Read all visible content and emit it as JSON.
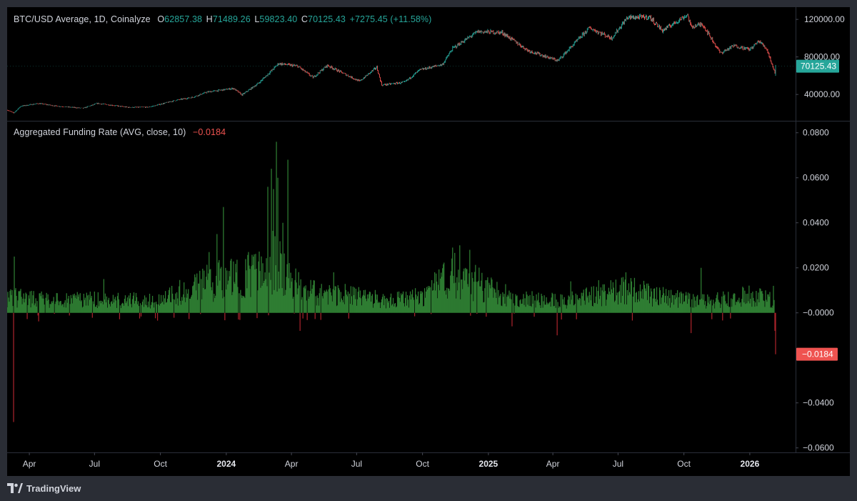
{
  "price_legend": {
    "symbol": "BTC/USD Average, 1D, Coinalyze",
    "open_label": "O",
    "open": "62857.38",
    "high_label": "H",
    "high": "71489.26",
    "low_label": "L",
    "low": "59823.40",
    "close_label": "C",
    "close": "70125.43",
    "change": "+7275.45 (+11.58%)"
  },
  "funding_legend": {
    "title": "Aggregated Funding Rate (AVG, close, 10)",
    "value": "−0.0184"
  },
  "branding": {
    "name": "TradingView"
  },
  "colors": {
    "up": "#26a69a",
    "down": "#ef5350",
    "bar_up": "#2e7d32",
    "bar_down": "#a8232b",
    "background": "#000000",
    "frame": "#2a2d35"
  },
  "chart_data": [
    {
      "type": "candlestick",
      "title": "BTC/USD Average, 1D, Coinalyze",
      "x_start": "2023-03-01",
      "x_end": "2026-02-06",
      "anchors": [
        [
          "2023-03-01",
          23500
        ],
        [
          "2023-03-10",
          20200
        ],
        [
          "2023-03-20",
          27500
        ],
        [
          "2023-04-14",
          30400
        ],
        [
          "2023-05-10",
          27500
        ],
        [
          "2023-06-15",
          25300
        ],
        [
          "2023-07-05",
          30500
        ],
        [
          "2023-08-18",
          26200
        ],
        [
          "2023-09-15",
          26500
        ],
        [
          "2023-10-24",
          34000
        ],
        [
          "2023-11-15",
          37000
        ],
        [
          "2023-12-05",
          42500
        ],
        [
          "2024-01-11",
          46500
        ],
        [
          "2024-01-23",
          39500
        ],
        [
          "2024-02-15",
          52000
        ],
        [
          "2024-03-05",
          66000
        ],
        [
          "2024-03-14",
          73000
        ],
        [
          "2024-04-10",
          70000
        ],
        [
          "2024-05-01",
          58000
        ],
        [
          "2024-05-21",
          71000
        ],
        [
          "2024-07-05",
          54000
        ],
        [
          "2024-07-29",
          69000
        ],
        [
          "2024-08-05",
          50000
        ],
        [
          "2024-09-06",
          53000
        ],
        [
          "2024-09-27",
          66000
        ],
        [
          "2024-10-29",
          72000
        ],
        [
          "2024-11-12",
          89000
        ],
        [
          "2024-12-17",
          107000
        ],
        [
          "2025-01-20",
          106000
        ],
        [
          "2025-02-25",
          87000
        ],
        [
          "2025-04-08",
          76000
        ],
        [
          "2025-05-22",
          111000
        ],
        [
          "2025-06-22",
          100000
        ],
        [
          "2025-07-14",
          122000
        ],
        [
          "2025-08-14",
          122500
        ],
        [
          "2025-09-01",
          108000
        ],
        [
          "2025-10-06",
          125000
        ],
        [
          "2025-10-11",
          112000
        ],
        [
          "2025-10-27",
          115000
        ],
        [
          "2025-11-21",
          84000
        ],
        [
          "2025-12-10",
          92000
        ],
        [
          "2026-01-01",
          88000
        ],
        [
          "2026-01-14",
          97000
        ],
        [
          "2026-01-25",
          88000
        ],
        [
          "2026-02-05",
          63000
        ],
        [
          "2026-02-06",
          70125.43
        ]
      ],
      "last_value": "70125.43",
      "ylim": [
        15000,
        130000
      ],
      "yticks": [
        "40000.00",
        "80000.00",
        "120000.00"
      ],
      "ytick_values": [
        40000,
        80000,
        120000
      ]
    },
    {
      "type": "bar",
      "title": "Aggregated Funding Rate (AVG, close, 10)",
      "x_start": "2023-03-01",
      "x_end": "2026-02-06",
      "baseline_anchors": [
        [
          "2023-03-01",
          0.007
        ],
        [
          "2023-05-01",
          0.0055
        ],
        [
          "2023-08-01",
          0.006
        ],
        [
          "2023-10-01",
          0.005
        ],
        [
          "2023-11-01",
          0.0095
        ],
        [
          "2023-12-15",
          0.014
        ],
        [
          "2024-02-15",
          0.018
        ],
        [
          "2024-03-10",
          0.023
        ],
        [
          "2024-04-20",
          0.009
        ],
        [
          "2024-06-01",
          0.0085
        ],
        [
          "2024-08-15",
          0.0055
        ],
        [
          "2024-10-01",
          0.007
        ],
        [
          "2024-11-15",
          0.018
        ],
        [
          "2024-12-20",
          0.012
        ],
        [
          "2025-02-01",
          0.007
        ],
        [
          "2025-04-15",
          0.005
        ],
        [
          "2025-06-01",
          0.008
        ],
        [
          "2025-07-15",
          0.01
        ],
        [
          "2025-09-01",
          0.007
        ],
        [
          "2025-11-01",
          0.005
        ],
        [
          "2026-01-15",
          0.008
        ],
        [
          "2026-02-06",
          0.005
        ]
      ],
      "spikes": [
        [
          "2023-03-10",
          -0.0485
        ],
        [
          "2023-03-11",
          0.025
        ],
        [
          "2023-07-14",
          0.015
        ],
        [
          "2023-12-08",
          0.027
        ],
        [
          "2023-12-19",
          0.035
        ],
        [
          "2023-12-28",
          0.047
        ],
        [
          "2024-01-08",
          0.024
        ],
        [
          "2024-02-28",
          0.056
        ],
        [
          "2024-03-04",
          0.064
        ],
        [
          "2024-03-07",
          0.055
        ],
        [
          "2024-03-11",
          0.076
        ],
        [
          "2024-03-13",
          0.06
        ],
        [
          "2024-03-20",
          0.04
        ],
        [
          "2024-03-27",
          0.068
        ],
        [
          "2024-04-13",
          -0.008
        ],
        [
          "2024-05-30",
          0.018
        ],
        [
          "2024-11-12",
          0.029
        ],
        [
          "2024-11-22",
          0.03
        ],
        [
          "2024-12-06",
          0.028
        ],
        [
          "2025-02-03",
          -0.006
        ],
        [
          "2025-04-07",
          -0.01
        ],
        [
          "2025-04-26",
          0.014
        ],
        [
          "2025-06-04",
          0.0145
        ],
        [
          "2025-07-12",
          0.018
        ],
        [
          "2025-10-11",
          -0.009
        ],
        [
          "2025-10-25",
          0.02
        ],
        [
          "2026-02-03",
          0.012
        ],
        [
          "2026-02-05",
          -0.008
        ],
        [
          "2026-02-06",
          -0.0184
        ]
      ],
      "last_value": "−0.0184",
      "ylim": [
        -0.062,
        0.085
      ],
      "yticks": [
        "0.0800",
        "0.0600",
        "0.0400",
        "0.0200",
        "−0.0000",
        "−0.0400",
        "−0.0600"
      ],
      "ytick_values": [
        0.08,
        0.06,
        0.04,
        0.02,
        0.0,
        -0.04,
        -0.06
      ]
    }
  ],
  "x_axis": {
    "ticks": [
      {
        "label": "Apr",
        "date": "2023-04-01",
        "bold": false
      },
      {
        "label": "Jul",
        "date": "2023-07-01",
        "bold": false
      },
      {
        "label": "Oct",
        "date": "2023-10-01",
        "bold": false
      },
      {
        "label": "2024",
        "date": "2024-01-01",
        "bold": true
      },
      {
        "label": "Apr",
        "date": "2024-04-01",
        "bold": false
      },
      {
        "label": "Jul",
        "date": "2024-07-01",
        "bold": false
      },
      {
        "label": "Oct",
        "date": "2024-10-01",
        "bold": false
      },
      {
        "label": "2025",
        "date": "2025-01-01",
        "bold": true
      },
      {
        "label": "Apr",
        "date": "2025-04-01",
        "bold": false
      },
      {
        "label": "Jul",
        "date": "2025-07-01",
        "bold": false
      },
      {
        "label": "Oct",
        "date": "2025-10-01",
        "bold": false
      },
      {
        "label": "2026",
        "date": "2026-01-01",
        "bold": true
      }
    ]
  }
}
